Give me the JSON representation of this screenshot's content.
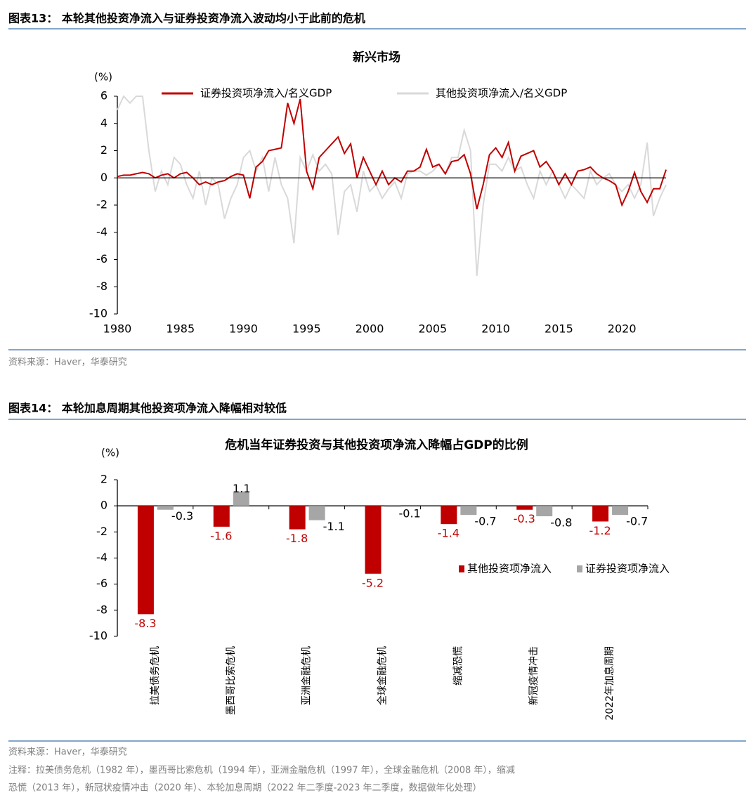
{
  "captions": [
    "图表13：  本轮其他投资净流入与证券投资净流入波动均小于此前的危机",
    "图表14：  本轮加息周期其他投资项净流入降幅相对较低"
  ],
  "sources": [
    "资料来源：Haver，华泰研究",
    "资料来源：Haver，华泰研究"
  ],
  "note": [
    "注释：拉美债务危机（1982 年），墨西哥比索危机（1994 年），亚洲金融危机（1997 年），全球金融危机（2008 年），缩减",
    "恐慌（2013 年），新冠状疫情冲击（2020 年）、本轮加息周期（2022 年二季度-2023 年二季度，数据做年化处理）"
  ],
  "chart_data": [
    {
      "type": "line",
      "title": "新兴市场",
      "y_unit": "(%)",
      "x": [
        1980,
        1980.5,
        1981,
        1981.5,
        1982,
        1982.5,
        1983,
        1983.5,
        1984,
        1984.5,
        1985,
        1985.5,
        1986,
        1986.5,
        1987,
        1987.5,
        1988,
        1988.5,
        1989,
        1989.5,
        1990,
        1990.5,
        1991,
        1991.5,
        1992,
        1992.5,
        1993,
        1993.5,
        1994,
        1994.5,
        1995,
        1995.5,
        1996,
        1996.5,
        1997,
        1997.5,
        1998,
        1998.5,
        1999,
        1999.5,
        2000,
        2000.5,
        2001,
        2001.5,
        2002,
        2002.5,
        2003,
        2003.5,
        2004,
        2004.5,
        2005,
        2005.5,
        2006,
        2006.5,
        2007,
        2007.5,
        2008,
        2008.5,
        2009,
        2009.5,
        2010,
        2010.5,
        2011,
        2011.5,
        2012,
        2012.5,
        2013,
        2013.5,
        2014,
        2014.5,
        2015,
        2015.5,
        2016,
        2016.5,
        2017,
        2017.5,
        2018,
        2018.5,
        2019,
        2019.5,
        2020,
        2020.5,
        2021,
        2021.5,
        2022,
        2022.5,
        2023,
        2023.5
      ],
      "series": [
        {
          "name": "其他投资项净流入/名义GDP",
          "color": "#d9d9d9",
          "values": [
            5,
            6,
            5.5,
            6,
            6,
            2,
            -1,
            0.5,
            -0.5,
            1.5,
            1,
            -0.5,
            -1.5,
            0.5,
            -2,
            0,
            -0.5,
            -3,
            -1.5,
            -0.5,
            1.5,
            2,
            0.5,
            1.5,
            -1,
            1.5,
            -0.5,
            -1.5,
            -4.8,
            1.5,
            0.5,
            1.7,
            0.5,
            1,
            0.3,
            -4.2,
            -1,
            -0.5,
            -2.5,
            0.5,
            -1,
            -0.5,
            -1.5,
            -0.8,
            -0.3,
            -1.5,
            0.3,
            0.5,
            0.5,
            0.2,
            0.5,
            1,
            0.3,
            1.5,
            1.5,
            3.5,
            2,
            -7.2,
            -2,
            1,
            1,
            0.5,
            1.5,
            0.5,
            0.8,
            -0.5,
            -1.5,
            0.5,
            -0.5,
            0.5,
            -0.5,
            -1.5,
            -0.5,
            -1,
            -1.5,
            0.5,
            -0.5,
            0,
            0.3,
            -0.5,
            -1,
            -0.5,
            -1.5,
            -0.5,
            2.6,
            -2.8,
            -1.5,
            -0.5
          ]
        },
        {
          "name": "证券投资项净流入/名义GDP",
          "color": "#c00000",
          "values": [
            0.1,
            0.2,
            0.2,
            0.3,
            0.4,
            0.3,
            0,
            0.2,
            0.3,
            0,
            0.3,
            0.4,
            0,
            -0.5,
            -0.3,
            -0.5,
            -0.3,
            -0.2,
            0.1,
            0.3,
            0.2,
            -1.5,
            0.8,
            1.2,
            2,
            2.1,
            2.2,
            5.5,
            4,
            5.8,
            0.5,
            -0.8,
            1.5,
            2,
            2.5,
            3,
            1.8,
            2.5,
            0,
            1.5,
            0.5,
            -0.5,
            0.5,
            -0.5,
            0,
            -0.3,
            0.5,
            0.5,
            0.8,
            2.1,
            0.8,
            1,
            0.3,
            1.2,
            1.3,
            1.7,
            0.3,
            -2.3,
            -0.5,
            1.7,
            2.2,
            1.5,
            2.6,
            0.5,
            1.6,
            1.8,
            2,
            0.8,
            1.2,
            0.5,
            -0.5,
            0.3,
            -0.5,
            0.5,
            0.6,
            0.8,
            0.3,
            0,
            -0.2,
            -0.5,
            -2,
            -1,
            0.4,
            -1,
            -1.8,
            -0.8,
            -0.8,
            0.6
          ]
        }
      ],
      "xlim": [
        1980,
        2023.5
      ],
      "xticks": [
        1980,
        1985,
        1990,
        1995,
        2000,
        2005,
        2010,
        2015,
        2020
      ],
      "ylim": [
        -10,
        6
      ],
      "yticks": [
        -10,
        -8,
        -6,
        -4,
        -2,
        0,
        2,
        4,
        6
      ],
      "legend": "top"
    },
    {
      "type": "bar",
      "title": "危机当年证券投资与其他投资项净流入降幅占GDP的比例",
      "y_unit": "(%)",
      "categories": [
        "拉美债务危机",
        "墨西哥比索危机",
        "亚洲金融危机",
        "全球金融危机",
        "缩减恐慌",
        "新冠疫情冲击",
        "2022年加息周期"
      ],
      "series": [
        {
          "name": "其他投资项净流入",
          "color": "#c00000",
          "values": [
            -8.3,
            -1.6,
            -1.8,
            -5.2,
            -1.4,
            -0.3,
            -1.2
          ]
        },
        {
          "name": "证券投资项净流入",
          "color": "#a6a6a6",
          "values": [
            -0.3,
            1.1,
            -1.1,
            -0.1,
            -0.7,
            -0.8,
            -0.7
          ]
        }
      ],
      "ylim": [
        -10,
        2
      ],
      "yticks": [
        -10,
        -8,
        -6,
        -4,
        -2,
        0,
        2
      ],
      "legend": "right"
    }
  ]
}
